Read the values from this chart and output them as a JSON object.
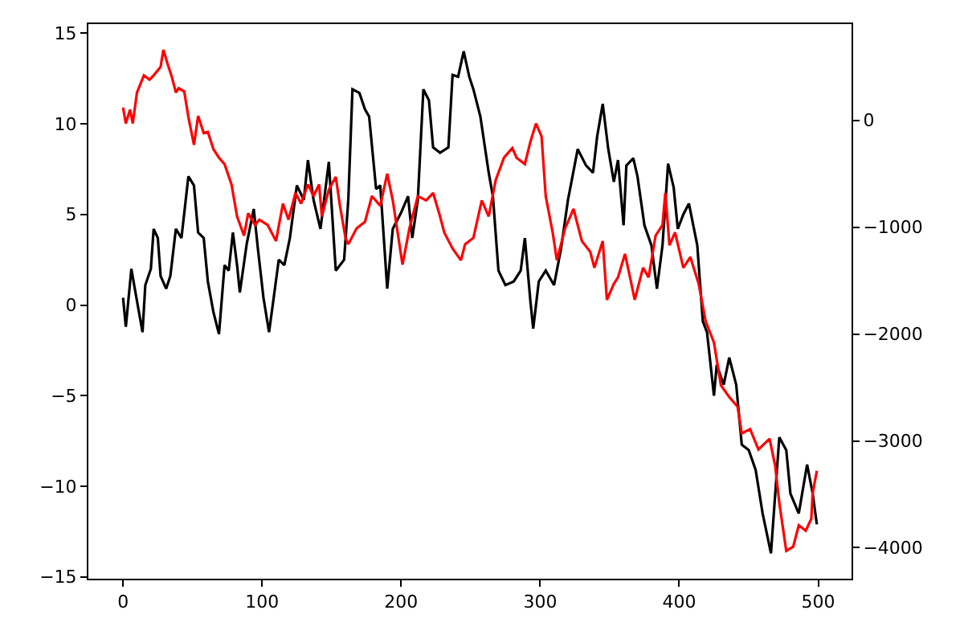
{
  "chart_data": {
    "type": "line",
    "xlim": [
      -24.95,
      523.95
    ],
    "xticks": [
      0,
      100,
      200,
      300,
      400,
      500
    ],
    "ylim": [
      -15.1,
      15.5
    ],
    "yticks": [
      {
        "value": -15,
        "label": "−15"
      },
      {
        "value": -10,
        "label": "−10"
      },
      {
        "value": -5,
        "label": "−5"
      },
      0,
      5,
      10,
      15
    ],
    "y2lim": [
      -4290,
      900
    ],
    "y2ticks": [
      {
        "value": -4000,
        "label": "−4000"
      },
      {
        "value": -3000,
        "label": "−3000"
      },
      {
        "value": -2000,
        "label": "−2000"
      },
      {
        "value": -1000,
        "label": "−1000"
      },
      0
    ],
    "marker": "none",
    "line_style": "solid",
    "series": [
      {
        "color": "#000000",
        "x": [
          0,
          2,
          6,
          8,
          14,
          16,
          20,
          22,
          25,
          27,
          31,
          34,
          38,
          42,
          47,
          51,
          54,
          58,
          61,
          65,
          69,
          73,
          76,
          79,
          82,
          84,
          89,
          94,
          97,
          101,
          105,
          108,
          112,
          116,
          120,
          125,
          130,
          133,
          137,
          142,
          148,
          153,
          159,
          162,
          165,
          170,
          174,
          177,
          182,
          185,
          190,
          194,
          200,
          205,
          208,
          212,
          216,
          220,
          223,
          228,
          234,
          237,
          241,
          245,
          249,
          252,
          257,
          263,
          266,
          270,
          275,
          281,
          286,
          289,
          293,
          295,
          299,
          304,
          310,
          315,
          320,
          327,
          333,
          338,
          341,
          345,
          349,
          353,
          356,
          360,
          362,
          367,
          370,
          375,
          380,
          384,
          388,
          392,
          396,
          399,
          403,
          407,
          413,
          417,
          420,
          425,
          427,
          432,
          436,
          441,
          445,
          450,
          455,
          460,
          466,
          472,
          477,
          480,
          486,
          492,
          496,
          499
        ],
        "values": [
          0.4,
          -1.2,
          2.0,
          1.1,
          -1.5,
          1.1,
          2.0,
          4.2,
          3.7,
          1.6,
          0.9,
          1.6,
          4.2,
          3.7,
          7.1,
          6.6,
          4.0,
          3.7,
          1.3,
          -0.4,
          -1.6,
          2.2,
          1.9,
          4.0,
          2.2,
          0.7,
          3.4,
          5.3,
          3.1,
          0.4,
          -1.5,
          0.2,
          2.5,
          2.2,
          3.7,
          6.6,
          5.8,
          8.0,
          5.8,
          4.2,
          7.9,
          1.9,
          2.5,
          5.8,
          11.9,
          11.7,
          10.8,
          10.4,
          6.4,
          6.6,
          0.9,
          4.2,
          5.1,
          6.0,
          3.7,
          5.8,
          11.9,
          11.3,
          8.7,
          8.4,
          8.7,
          12.7,
          12.6,
          14.0,
          12.6,
          11.9,
          10.4,
          7.3,
          6.0,
          1.9,
          1.1,
          1.3,
          1.9,
          3.7,
          0.2,
          -1.3,
          1.3,
          1.9,
          1.1,
          3.1,
          5.8,
          8.6,
          7.7,
          7.3,
          9.3,
          11.1,
          8.6,
          6.8,
          8.0,
          4.4,
          7.7,
          8.1,
          7.1,
          4.4,
          3.3,
          0.9,
          3.3,
          7.8,
          6.5,
          4.2,
          5.0,
          5.6,
          3.3,
          -0.9,
          -1.5,
          -5.0,
          -3.3,
          -4.4,
          -2.9,
          -4.4,
          -7.7,
          -8.0,
          -9.1,
          -11.5,
          -13.7,
          -7.3,
          -8.0,
          -10.4,
          -11.5,
          -8.8,
          -10.4,
          -12.1
        ]
      },
      {
        "color": "#ff0000",
        "axis": "y2",
        "x": [
          0,
          2,
          5,
          7,
          10,
          15,
          19,
          22,
          27,
          29,
          32,
          35,
          38,
          40,
          44,
          47,
          51,
          54,
          58,
          61,
          65,
          69,
          73,
          78,
          82,
          87,
          90,
          95,
          98,
          104,
          110,
          115,
          119,
          124,
          128,
          133,
          137,
          141,
          143,
          148,
          153,
          156,
          160,
          162,
          168,
          174,
          179,
          185,
          190,
          194,
          201,
          206,
          212,
          218,
          223,
          228,
          231,
          237,
          243,
          246,
          252,
          258,
          263,
          268,
          274,
          280,
          283,
          289,
          293,
          297,
          301,
          304,
          309,
          312,
          318,
          324,
          330,
          336,
          339,
          345,
          348,
          353,
          356,
          361,
          364,
          368,
          374,
          378,
          383,
          388,
          390,
          393,
          397,
          403,
          408,
          414,
          419,
          425,
          430,
          436,
          442,
          445,
          451,
          457,
          465,
          469,
          472,
          477,
          482,
          486,
          491,
          495,
          496,
          499
        ],
        "values": [
          120,
          -30,
          100,
          -30,
          260,
          420,
          380,
          420,
          500,
          660,
          530,
          410,
          260,
          300,
          270,
          30,
          -230,
          40,
          -120,
          -110,
          -270,
          -350,
          -410,
          -600,
          -900,
          -1080,
          -870,
          -980,
          -930,
          -980,
          -1130,
          -780,
          -930,
          -680,
          -780,
          -600,
          -710,
          -600,
          -900,
          -650,
          -530,
          -800,
          -1100,
          -1160,
          -1010,
          -950,
          -710,
          -800,
          -500,
          -750,
          -1350,
          -1010,
          -710,
          -750,
          -680,
          -900,
          -1050,
          -1200,
          -1310,
          -1160,
          -1100,
          -750,
          -900,
          -560,
          -350,
          -260,
          -350,
          -410,
          -200,
          -30,
          -150,
          -710,
          -1050,
          -1310,
          -1010,
          -830,
          -1130,
          -1230,
          -1380,
          -1130,
          -1680,
          -1530,
          -1470,
          -1250,
          -1430,
          -1680,
          -1380,
          -1470,
          -1080,
          -980,
          -680,
          -1170,
          -1050,
          -1380,
          -1280,
          -1530,
          -1880,
          -2080,
          -2480,
          -2590,
          -2680,
          -2930,
          -2890,
          -3080,
          -2980,
          -3230,
          -3580,
          -4030,
          -3990,
          -3790,
          -3840,
          -3730,
          -3490,
          -3280
        ]
      }
    ]
  }
}
